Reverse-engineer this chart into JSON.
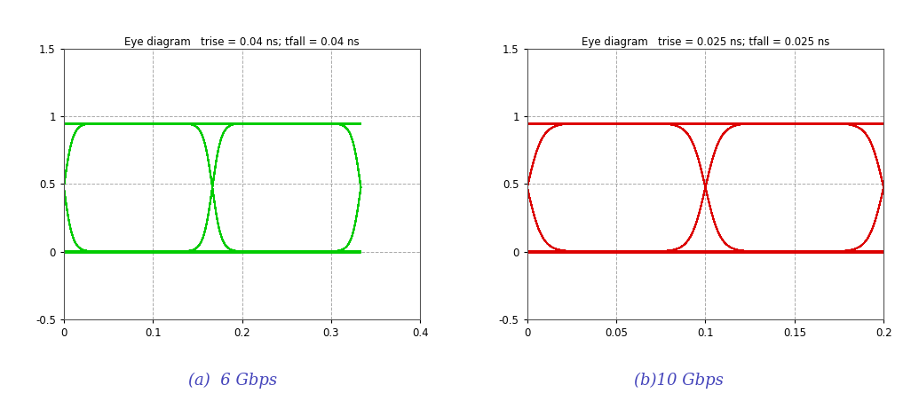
{
  "panel_a": {
    "title": "Eye diagram   trise = 0.04 ns; tfall = 0.04 ns",
    "caption": "(a)  6 Gbps",
    "color": "#00cc00",
    "xlim": [
      0,
      0.4
    ],
    "ylim": [
      -0.5,
      1.5
    ],
    "xticks": [
      0,
      0.1,
      0.2,
      0.3,
      0.4
    ],
    "yticks": [
      -0.5,
      0,
      0.5,
      1,
      1.5
    ],
    "trise": 0.04,
    "tfall": 0.04,
    "bit_period": 0.16667,
    "vhigh": 0.95,
    "vlow": 0.0,
    "sigmoid_steepness": 8.0
  },
  "panel_b": {
    "title": "Eye diagram   trise = 0.025 ns; tfall = 0.025 ns",
    "caption": "(b)10 Gbps",
    "color": "#dd0000",
    "xlim": [
      0,
      0.2
    ],
    "ylim": [
      -0.5,
      1.5
    ],
    "xticks": [
      0,
      0.05,
      0.1,
      0.15,
      0.2
    ],
    "yticks": [
      -0.5,
      0,
      0.5,
      1,
      1.5
    ],
    "trise": 0.025,
    "tfall": 0.025,
    "bit_period": 0.1,
    "vhigh": 0.95,
    "vlow": 0.0,
    "sigmoid_steepness": 6.0
  },
  "bg_color": "#ffffff",
  "grid_color": "#aaaaaa",
  "grid_style": "--",
  "title_fontsize": 8.5,
  "tick_fontsize": 8.5,
  "caption_fontsize": 13,
  "caption_color": "#4444bb",
  "lw": 1.0
}
